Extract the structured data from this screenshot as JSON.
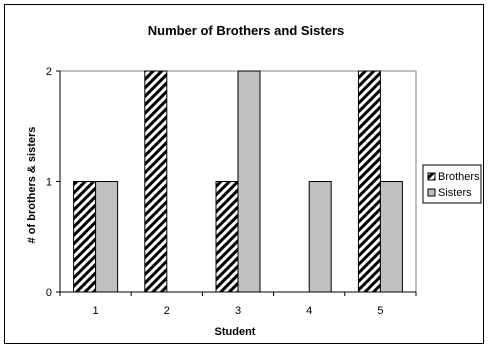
{
  "chart_data": {
    "type": "bar",
    "title": "Number of Brothers and Sisters",
    "xlabel": "Student",
    "ylabel": "# of brothers & sisters",
    "categories": [
      "1",
      "2",
      "3",
      "4",
      "5"
    ],
    "series": [
      {
        "name": "Brothers",
        "values": [
          1,
          2,
          1,
          0,
          2
        ],
        "pattern": "diagonal-hatch",
        "color": "#000000"
      },
      {
        "name": "Sisters",
        "values": [
          1,
          0,
          2,
          1,
          1
        ],
        "color": "#c0c0c0"
      }
    ],
    "ylim": [
      0,
      2
    ],
    "yticks": [
      0,
      1,
      2
    ],
    "grid": false,
    "legend_position": "right"
  }
}
